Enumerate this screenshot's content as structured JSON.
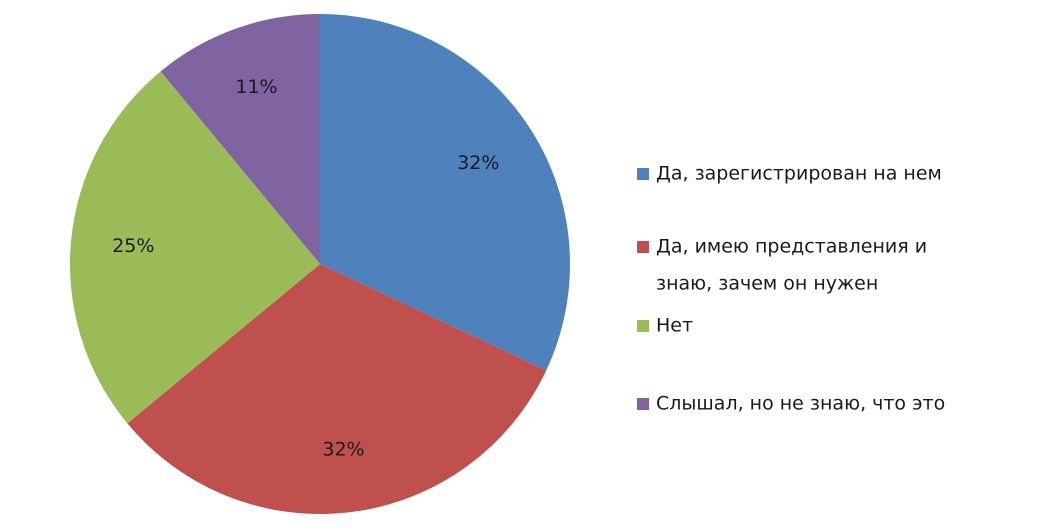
{
  "chart_data": {
    "type": "pie",
    "values": [
      32,
      32,
      25,
      11
    ],
    "labels": [
      "32%",
      "32%",
      "25%",
      "11%"
    ],
    "legend": {
      "placement": "right",
      "entries": [
        {
          "text_lines": [
            "Да, зарегистрирован на нем"
          ],
          "color": "#4F81BD"
        },
        {
          "text_lines": [
            "Да, имею представления и",
            "знаю, зачем он нужен"
          ],
          "color": "#C0504D"
        },
        {
          "text_lines": [
            "Нет"
          ],
          "color": "#9BBB59"
        },
        {
          "text_lines": [
            "Слышал, но не знаю, что это"
          ],
          "color": "#8064A2"
        }
      ]
    },
    "start_angle_deg": 0,
    "direction": "clockwise"
  }
}
